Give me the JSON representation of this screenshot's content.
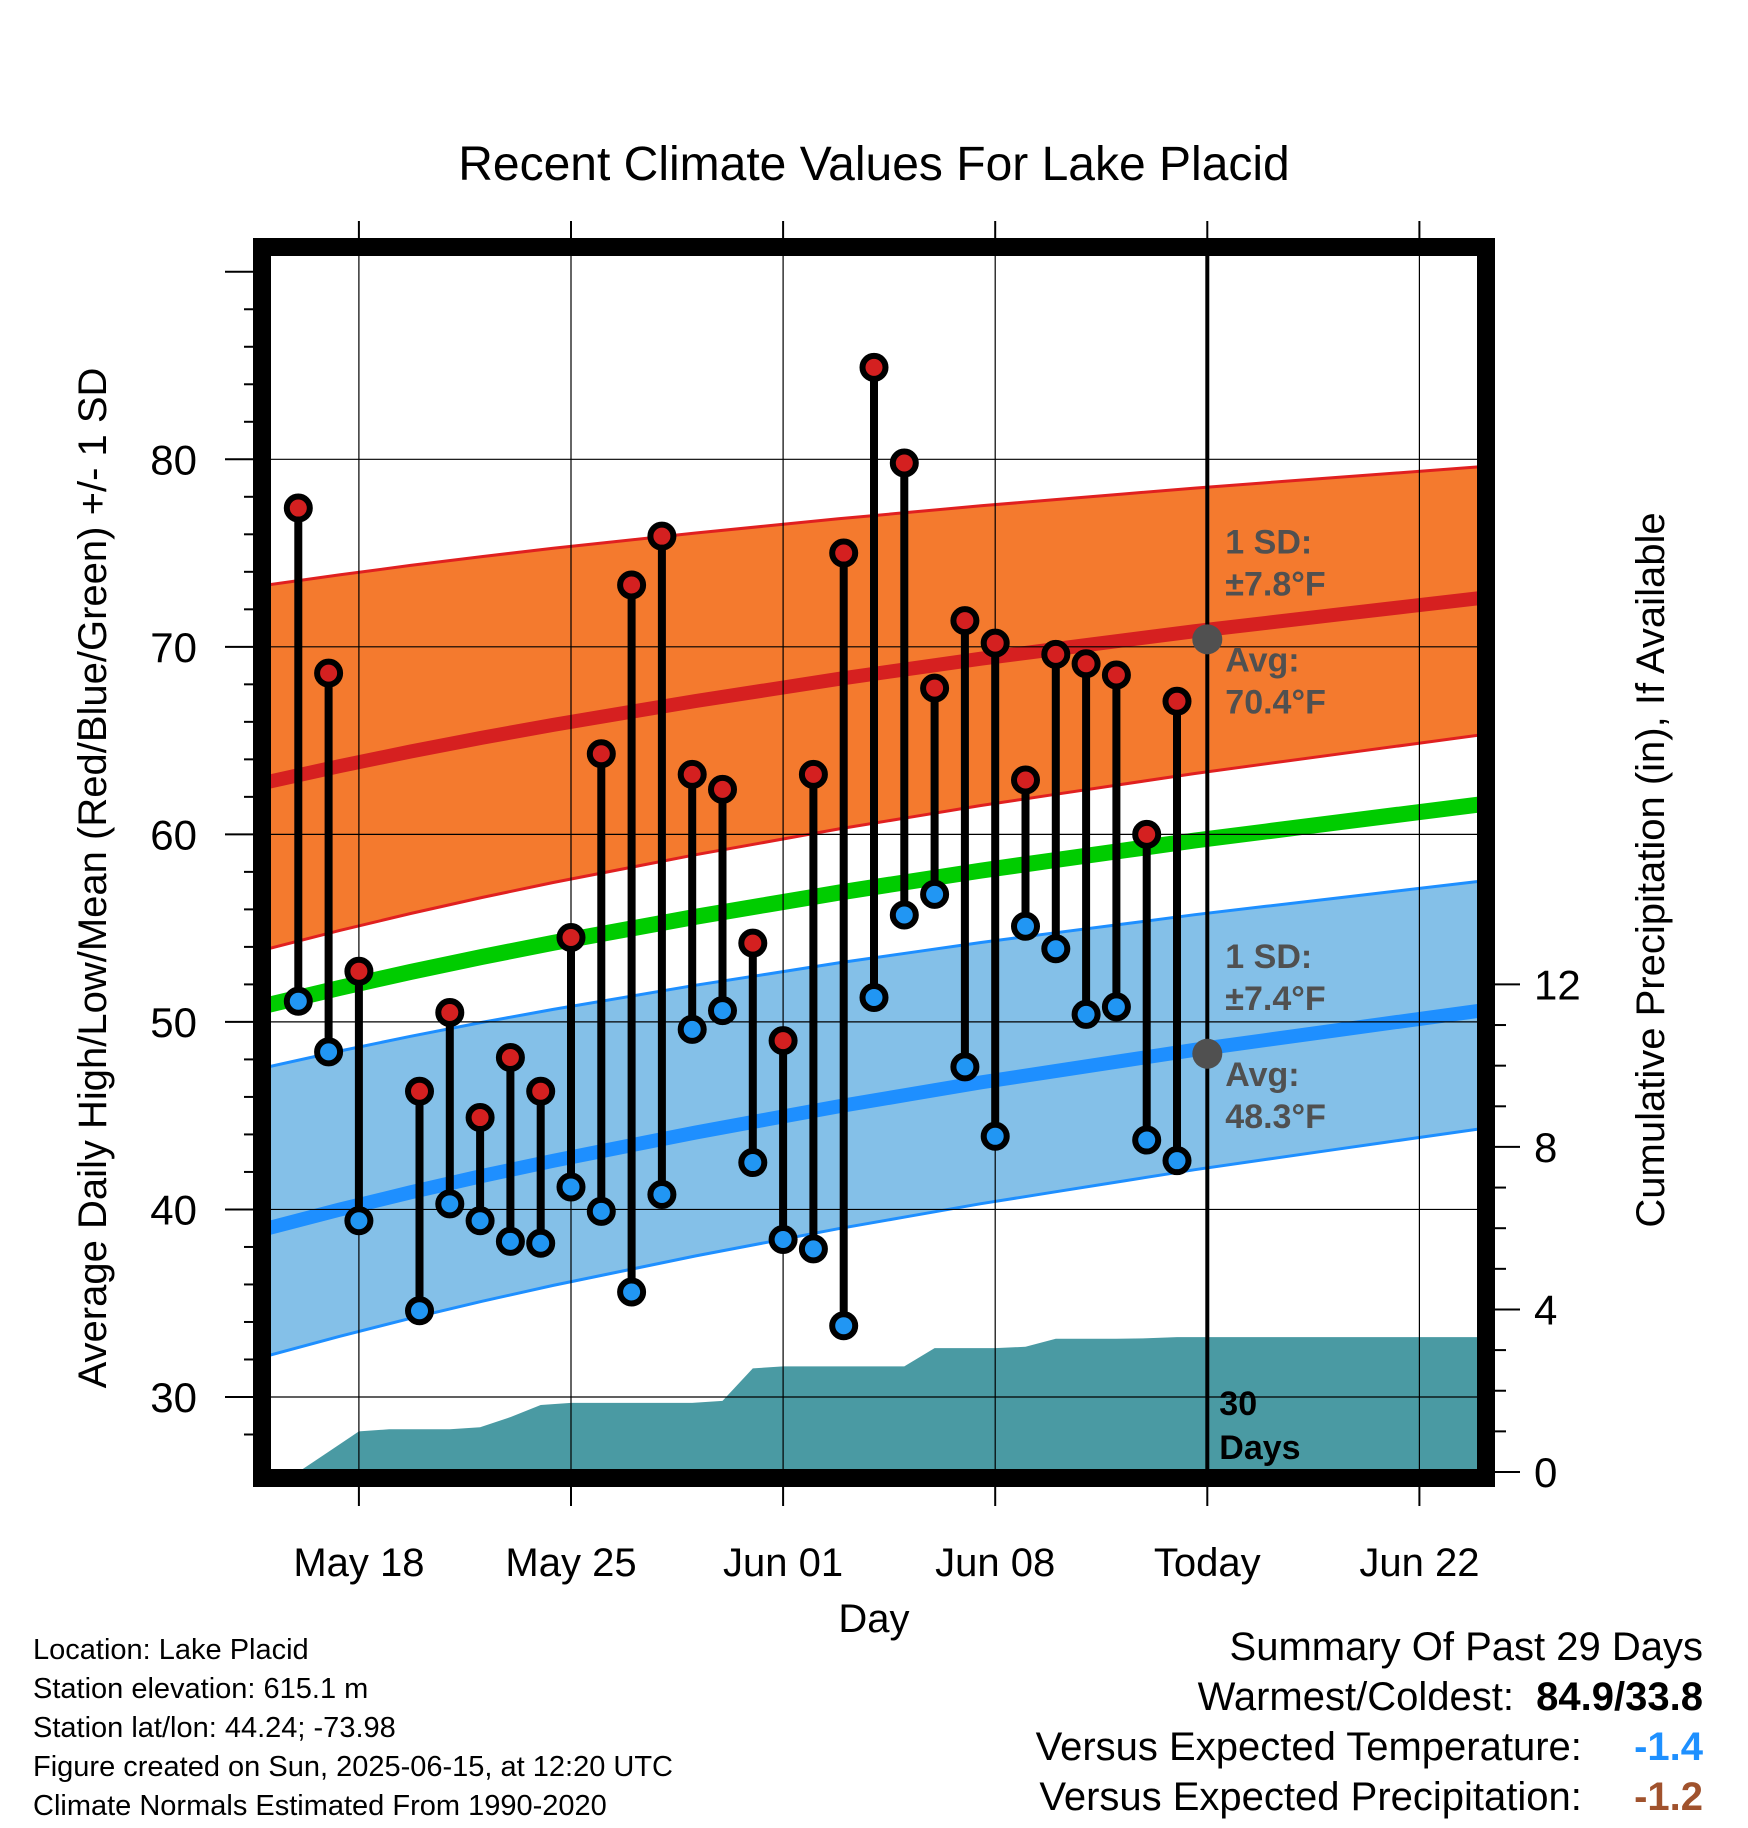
{
  "colors": {
    "high_band": "#f47a2e",
    "high_band_edge": "#e02020",
    "high_mean": "#d62020",
    "low_band": "#84c0e8",
    "low_band_edge": "#1e8fff",
    "low_mean": "#1e8fff",
    "mean_line": "#00cc00",
    "precip": "#4a9aa3",
    "high_marker": "#d42020",
    "low_marker": "#2196f3",
    "annotation": "#505050",
    "departure_temp": "#1e90ff",
    "departure_precip": "#a0522d"
  },
  "chart_data": {
    "type": "line",
    "title": "Recent Climate Values For Lake Placid",
    "xlabel": "Day",
    "ylabel": "Average Daily High/Low/Mean (Red/Blue/Green) +/- 1 SD",
    "y2label": "Cumulative Precipitation (in), If Available",
    "xlim": [
      "2025-05-15",
      "2025-06-24"
    ],
    "ylim": [
      26,
      91
    ],
    "y2lim": [
      0,
      30
    ],
    "grid": true,
    "x_ticks": [
      {
        "date": "2025-05-18",
        "label": "May 18"
      },
      {
        "date": "2025-05-25",
        "label": "May 25"
      },
      {
        "date": "2025-06-01",
        "label": "Jun 01"
      },
      {
        "date": "2025-06-08",
        "label": "Jun 08"
      },
      {
        "date": "2025-06-15",
        "label": "Today"
      },
      {
        "date": "2025-06-22",
        "label": "Jun 22"
      }
    ],
    "y_ticks": [
      30,
      40,
      50,
      60,
      70,
      80
    ],
    "y2_ticks": [
      0,
      4,
      8,
      12
    ],
    "today": "2025-06-15",
    "today_label": "30\nDays",
    "normals": {
      "dates": [
        "2025-05-15",
        "2025-06-24"
      ],
      "high_mean": [
        62.8,
        72.6
      ],
      "high_upper": [
        73.3,
        79.6
      ],
      "high_lower": [
        53.9,
        65.3
      ],
      "low_mean": [
        39.0,
        50.6
      ],
      "low_upper": [
        47.6,
        57.5
      ],
      "low_lower": [
        32.2,
        44.3
      ],
      "daily_mean": [
        50.9,
        61.6
      ]
    },
    "normal_band_shape": [
      0,
      0.085,
      0.165,
      0.24,
      0.31,
      0.375,
      0.44,
      0.5,
      0.56,
      0.615,
      0.67,
      0.72,
      0.77,
      0.82,
      0.865,
      0.91,
      0.955,
      1
    ],
    "observed": {
      "dates": [
        "2025-05-16",
        "2025-05-17",
        "2025-05-18",
        "2025-05-20",
        "2025-05-21",
        "2025-05-22",
        "2025-05-23",
        "2025-05-24",
        "2025-05-25",
        "2025-05-26",
        "2025-05-27",
        "2025-05-28",
        "2025-05-29",
        "2025-05-30",
        "2025-05-31",
        "2025-06-01",
        "2025-06-02",
        "2025-06-03",
        "2025-06-04",
        "2025-06-05",
        "2025-06-06",
        "2025-06-07",
        "2025-06-08",
        "2025-06-09",
        "2025-06-10",
        "2025-06-11",
        "2025-06-12",
        "2025-06-13",
        "2025-06-14"
      ],
      "high": [
        77.4,
        68.6,
        52.7,
        46.3,
        50.5,
        44.9,
        48.1,
        46.3,
        54.5,
        64.3,
        73.3,
        75.9,
        63.2,
        62.4,
        54.2,
        49.0,
        63.2,
        75.0,
        84.9,
        79.8,
        67.8,
        71.4,
        70.2,
        62.9,
        69.6,
        69.1,
        68.5,
        60.0,
        67.1
      ],
      "low": [
        51.1,
        48.4,
        39.4,
        34.6,
        40.3,
        39.4,
        38.3,
        38.2,
        41.2,
        39.9,
        35.6,
        40.8,
        49.6,
        50.6,
        42.5,
        38.4,
        37.9,
        33.8,
        51.3,
        55.7,
        56.8,
        47.6,
        43.9,
        55.1,
        53.9,
        50.4,
        50.8,
        43.7,
        42.6
      ]
    },
    "precip": {
      "dates": [
        "2025-05-16",
        "2025-05-17",
        "2025-05-18",
        "2025-05-19",
        "2025-05-20",
        "2025-05-21",
        "2025-05-22",
        "2025-05-23",
        "2025-05-24",
        "2025-05-25",
        "2025-05-26",
        "2025-05-27",
        "2025-05-28",
        "2025-05-29",
        "2025-05-30",
        "2025-05-31",
        "2025-06-01",
        "2025-06-02",
        "2025-06-03",
        "2025-06-04",
        "2025-06-05",
        "2025-06-06",
        "2025-06-07",
        "2025-06-08",
        "2025-06-09",
        "2025-06-10",
        "2025-06-11",
        "2025-06-12",
        "2025-06-13",
        "2025-06-14",
        "2025-06-24"
      ],
      "cumulative": [
        0.0,
        0.5,
        1.0,
        1.05,
        1.05,
        1.05,
        1.1,
        1.35,
        1.65,
        1.7,
        1.7,
        1.7,
        1.7,
        1.7,
        1.75,
        2.55,
        2.6,
        2.6,
        2.6,
        2.6,
        2.6,
        3.05,
        3.05,
        3.05,
        3.08,
        3.28,
        3.28,
        3.28,
        3.29,
        3.32,
        3.32
      ]
    },
    "annotations": {
      "high_sd": "1 SD:\n±7.8°F",
      "high_avg": "Avg:\n70.4°F",
      "high_avg_value": 70.4,
      "low_sd": "1 SD:\n±7.4°F",
      "low_avg": "Avg:\n48.3°F",
      "low_avg_value": 48.3
    }
  },
  "footer": {
    "location": "Location: Lake Placid",
    "elevation": "Station elevation: 615.1 m",
    "latlon": "Station lat/lon: 44.24; -73.98",
    "created": "Figure created on Sun, 2025-06-15, at 12:20 UTC",
    "normals": "Climate Normals Estimated From 1990-2020"
  },
  "summary": {
    "title": "Summary Of Past 29 Days",
    "warmest_coldest_label": "Warmest/Coldest:",
    "warmest_coldest_value": "84.9/33.8",
    "temp_label": "Versus Expected Temperature:",
    "temp_value": "-1.4",
    "precip_label": "Versus Expected Precipitation:",
    "precip_value": "-1.2"
  }
}
